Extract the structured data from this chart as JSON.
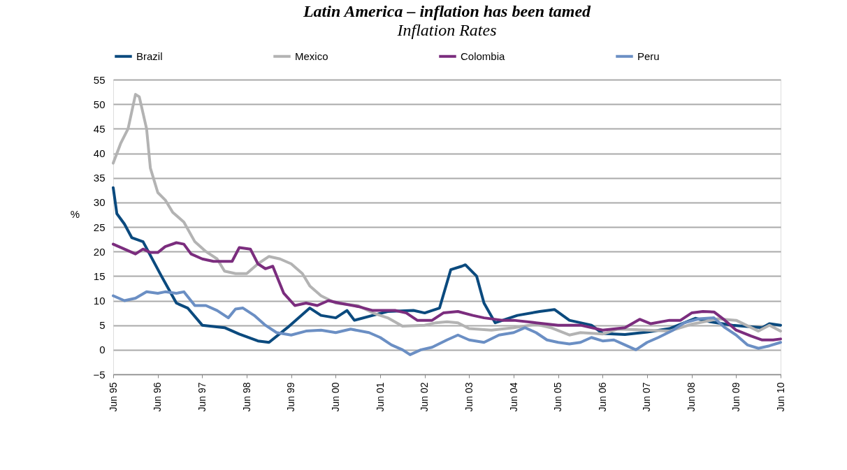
{
  "chart_data": {
    "type": "line",
    "title": "Latin America – inflation has been tamed",
    "subtitle": "Inflation Rates",
    "ylabel": "%",
    "ylim": [
      -5,
      55
    ],
    "yticks": [
      -5,
      0,
      5,
      10,
      15,
      20,
      25,
      30,
      35,
      40,
      45,
      50,
      55
    ],
    "xlim": [
      "1995-06",
      "2010-06"
    ],
    "xticks": [
      {
        "value": "1995-06",
        "label": "Jun 95"
      },
      {
        "value": "1996-06",
        "label": "Jun 96"
      },
      {
        "value": "1997-06",
        "label": "Jun 97"
      },
      {
        "value": "1998-06",
        "label": "Jun 98"
      },
      {
        "value": "1999-06",
        "label": "Jun 99"
      },
      {
        "value": "2000-06",
        "label": "Jun 00"
      },
      {
        "value": "2001-06",
        "label": "Jun 01"
      },
      {
        "value": "2002-06",
        "label": "Jun 02"
      },
      {
        "value": "2003-06",
        "label": "Jun 03"
      },
      {
        "value": "2004-06",
        "label": "Jun 04"
      },
      {
        "value": "2005-06",
        "label": "Jun 05"
      },
      {
        "value": "2006-06",
        "label": "Jun 06"
      },
      {
        "value": "2007-06",
        "label": "Jun 07"
      },
      {
        "value": "2008-06",
        "label": "Jun 08"
      },
      {
        "value": "2009-06",
        "label": "Jun 09"
      },
      {
        "value": "2010-06",
        "label": "Jun 10"
      }
    ],
    "grid": "y",
    "legend": "top",
    "marker": "none",
    "line_style": "solid",
    "series": [
      {
        "name": "Brazil",
        "color": "#0b4a7e",
        "x": [
          "1995-06",
          "1995-07",
          "1995-09",
          "1995-11",
          "1996-02",
          "1996-07",
          "1996-11",
          "1997-02",
          "1997-06",
          "1997-12",
          "1998-04",
          "1998-09",
          "1998-12",
          "1999-05",
          "1999-11",
          "2000-02",
          "2000-06",
          "2000-09",
          "2000-11",
          "2001-04",
          "2001-08",
          "2002-03",
          "2002-06",
          "2002-10",
          "2003-01",
          "2003-04",
          "2003-05",
          "2003-08",
          "2003-10",
          "2004-01",
          "2004-07",
          "2005-01",
          "2005-05",
          "2005-09",
          "2006-03",
          "2006-06",
          "2006-12",
          "2007-06",
          "2007-12",
          "2008-07",
          "2008-11",
          "2009-05",
          "2010-01",
          "2010-03",
          "2010-06"
        ],
        "values": [
          33,
          27.7,
          25.6,
          22.8,
          22,
          15,
          9.5,
          8.5,
          5,
          4.5,
          3.2,
          1.8,
          1.5,
          4.5,
          8.5,
          7,
          6.5,
          8,
          6,
          7,
          7.8,
          8,
          7.5,
          8.5,
          16.3,
          17,
          17.3,
          15,
          9.5,
          5.5,
          7,
          7.8,
          8.2,
          6,
          5,
          3.3,
          3.1,
          3.6,
          4.3,
          6.4,
          5.7,
          5,
          4.5,
          5.3,
          5
        ]
      },
      {
        "name": "Mexico",
        "color": "#b3b3b3",
        "x": [
          "1995-06",
          "1995-08",
          "1995-10",
          "1995-12",
          "1996-01",
          "1996-03",
          "1996-04",
          "1996-06",
          "1996-08",
          "1996-10",
          "1997-01",
          "1997-04",
          "1997-07",
          "1997-10",
          "1997-12",
          "1998-03",
          "1998-06",
          "1998-09",
          "1998-12",
          "1999-03",
          "1999-06",
          "1999-09",
          "1999-11",
          "2000-02",
          "2000-06",
          "2000-12",
          "2001-04",
          "2001-08",
          "2001-12",
          "2002-06",
          "2002-09",
          "2002-12",
          "2003-03",
          "2003-06",
          "2003-12",
          "2004-06",
          "2004-12",
          "2005-04",
          "2005-09",
          "2005-12",
          "2006-06",
          "2006-10",
          "2007-03",
          "2007-06",
          "2007-12",
          "2008-06",
          "2008-10",
          "2009-01",
          "2009-06",
          "2009-12",
          "2010-03",
          "2010-06"
        ],
        "values": [
          38,
          42,
          45,
          52,
          51.5,
          45,
          37,
          32,
          30.5,
          28,
          26,
          22,
          20,
          18.5,
          16,
          15.5,
          15.5,
          17.5,
          19,
          18.5,
          17.5,
          15.5,
          13,
          11,
          9.5,
          9,
          7.5,
          6.5,
          4.8,
          5,
          5.5,
          5.7,
          5.5,
          4.3,
          4,
          4.5,
          5.2,
          4.5,
          3,
          3.5,
          3.2,
          4.2,
          4.1,
          4,
          3.8,
          5.2,
          5.8,
          6.3,
          6,
          3.8,
          5,
          3.8
        ]
      },
      {
        "name": "Colombia",
        "color": "#7b2d7e",
        "x": [
          "1995-06",
          "1995-09",
          "1995-12",
          "1996-02",
          "1996-04",
          "1996-06",
          "1996-08",
          "1996-11",
          "1997-01",
          "1997-03",
          "1997-06",
          "1997-09",
          "1997-12",
          "1998-02",
          "1998-04",
          "1998-07",
          "1998-09",
          "1998-11",
          "1999-01",
          "1999-04",
          "1999-07",
          "1999-10",
          "2000-01",
          "2000-04",
          "2000-07",
          "2000-12",
          "2001-04",
          "2001-10",
          "2002-01",
          "2002-04",
          "2002-08",
          "2002-11",
          "2003-03",
          "2003-07",
          "2003-10",
          "2004-03",
          "2004-06",
          "2004-12",
          "2005-06",
          "2005-12",
          "2006-06",
          "2006-12",
          "2007-04",
          "2007-07",
          "2007-12",
          "2008-03",
          "2008-06",
          "2008-09",
          "2008-12",
          "2009-03",
          "2009-06",
          "2009-10",
          "2010-01",
          "2010-04",
          "2010-06"
        ],
        "values": [
          21.5,
          20.5,
          19.5,
          20.5,
          19.8,
          19.8,
          21,
          21.8,
          21.5,
          19.5,
          18.5,
          18,
          18,
          18,
          20.8,
          20.5,
          17.5,
          16.5,
          17,
          11.5,
          9,
          9.5,
          9,
          10,
          9.5,
          8.8,
          8,
          8,
          7.5,
          6,
          6,
          7.5,
          7.8,
          7,
          6.5,
          6,
          6,
          5.5,
          5,
          5,
          4,
          4.5,
          6.2,
          5.3,
          6,
          6,
          7.5,
          7.8,
          7.7,
          6,
          4,
          2.8,
          2,
          2,
          2.2
        ]
      },
      {
        "name": "Peru",
        "color": "#6b8fc4",
        "x": [
          "1995-06",
          "1995-09",
          "1995-12",
          "1996-03",
          "1996-06",
          "1996-08",
          "1996-11",
          "1997-01",
          "1997-04",
          "1997-07",
          "1997-10",
          "1998-01",
          "1998-03",
          "1998-05",
          "1998-08",
          "1998-11",
          "1999-02",
          "1999-06",
          "1999-10",
          "2000-02",
          "2000-06",
          "2000-10",
          "2001-03",
          "2001-06",
          "2001-09",
          "2001-12",
          "2002-02",
          "2002-05",
          "2002-08",
          "2002-12",
          "2003-03",
          "2003-06",
          "2003-10",
          "2004-02",
          "2004-06",
          "2004-09",
          "2004-12",
          "2005-03",
          "2005-06",
          "2005-09",
          "2005-12",
          "2006-03",
          "2006-06",
          "2006-09",
          "2006-12",
          "2007-03",
          "2007-06",
          "2007-09",
          "2008-01",
          "2008-04",
          "2008-08",
          "2008-12",
          "2009-03",
          "2009-06",
          "2009-09",
          "2009-12",
          "2010-03",
          "2010-06"
        ],
        "values": [
          11,
          10,
          10.5,
          11.8,
          11.5,
          11.8,
          11.5,
          11.8,
          9,
          9,
          8,
          6.5,
          8.3,
          8.5,
          7,
          5,
          3.5,
          3,
          3.8,
          4,
          3.5,
          4.2,
          3.5,
          2.5,
          1,
          0,
          -1,
          0,
          0.5,
          2,
          3,
          2,
          1.5,
          3,
          3.5,
          4.5,
          3.5,
          2,
          1.5,
          1.2,
          1.5,
          2.5,
          1.8,
          2,
          1,
          0,
          1.5,
          2.5,
          4,
          5.5,
          6.3,
          6.5,
          4.5,
          3,
          1,
          0.3,
          0.8,
          1.5
        ]
      }
    ]
  }
}
